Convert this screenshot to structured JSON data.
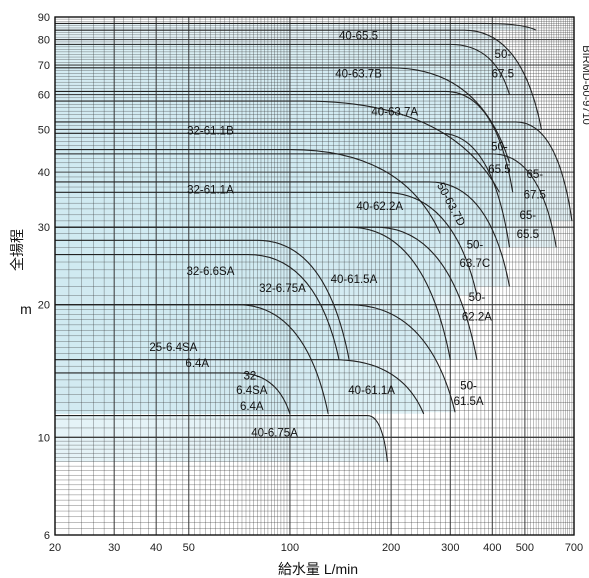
{
  "chart_data": {
    "type": "area",
    "xlabel": "給水量 L/min",
    "ylabel": "全揚程",
    "yunit": "m",
    "xscale": "log",
    "yscale": "log",
    "xlim": [
      20,
      700
    ],
    "ylim": [
      6,
      90
    ],
    "grid": true,
    "xticks": [
      20,
      30,
      40,
      50,
      100,
      200,
      300,
      400,
      500,
      700
    ],
    "yticks": [
      6,
      10,
      20,
      30,
      40,
      50,
      60,
      70,
      80,
      90
    ],
    "code": "BIRMD-60-9710",
    "colors": {
      "fill": "#cfe9f1",
      "line": "#222222",
      "grid": "#333333",
      "band": "#e9f4f7"
    },
    "regions": [
      {
        "label": "40-65.5",
        "hmax": 87,
        "hmin": 84,
        "qmax": 540,
        "knee": 380,
        "qend": 540
      },
      {
        "label": "50-67.5",
        "hmax": 84,
        "hmin": 50,
        "qmax": 560,
        "knee": 330,
        "qend": 560
      },
      {
        "label": "40-63.7B",
        "hmax": 78,
        "hmin": 60,
        "qmax": 450,
        "knee": 300,
        "qend": 450
      },
      {
        "label": "40-63.7A",
        "hmax": 69,
        "hmin": 42,
        "qmax": 450,
        "knee": 200,
        "qend": 450
      },
      {
        "label": "65-67.5",
        "hmax": 52,
        "hmin": 31,
        "qmax": 690,
        "knee": 470,
        "qend": 690
      },
      {
        "label": "50-65.5",
        "hmax": 61,
        "hmin": 36,
        "qmax": 460,
        "knee": 290,
        "qend": 460
      },
      {
        "label": "65-65.5",
        "hmax": 44,
        "hmin": 27,
        "qmax": 620,
        "knee": 400,
        "qend": 620
      },
      {
        "label": "32-61.1B",
        "hmax": 58,
        "hmin": 36,
        "qmax": 420,
        "knee": 110,
        "qend": 420
      },
      {
        "label": "50-63.7D",
        "hmax": 49,
        "hmin": 27,
        "qmax": 450,
        "knee": 280,
        "qend": 450
      },
      {
        "label": "50-63.7C",
        "hmax": 38,
        "hmin": 22,
        "qmax": 450,
        "knee": 260,
        "qend": 450
      },
      {
        "label": "32-61.1A",
        "hmax": 45,
        "hmin": 29,
        "qmax": 280,
        "knee": 100,
        "qend": 280
      },
      {
        "label": "40-62.2A",
        "hmax": 36,
        "hmin": 21,
        "qmax": 360,
        "knee": 190,
        "qend": 360
      },
      {
        "label": "50-62.2A",
        "hmax": 30,
        "hmin": 15,
        "qmax": 360,
        "knee": 180,
        "qend": 360
      },
      {
        "label": "40-61.5A",
        "hmax": 30,
        "hmin": 15,
        "qmax": 300,
        "knee": 150,
        "qend": 300
      },
      {
        "label": "32-6.6SA",
        "hmax": 28,
        "hmin": 15,
        "qmax": 150,
        "knee": 80,
        "qend": 150
      },
      {
        "label": "32-6.75A",
        "hmax": 26,
        "hmin": 15,
        "qmax": 140,
        "knee": 75,
        "qend": 140
      },
      {
        "label": "50-61.5A",
        "hmax": 20,
        "hmin": 11.4,
        "qmax": 310,
        "knee": 150,
        "qend": 310
      },
      {
        "label": "25-6.4SA 6.4A",
        "hmax": 20,
        "hmin": 11.3,
        "qmax": 130,
        "knee": 70,
        "qend": 130
      },
      {
        "label": "40-61.1A",
        "hmax": 15,
        "hmin": 11.3,
        "qmax": 250,
        "knee": 135,
        "qend": 250
      },
      {
        "label": "32-6.4SA 6.4A",
        "hmax": 14,
        "hmin": 11.3,
        "qmax": 100,
        "knee": 70,
        "qend": 100
      },
      {
        "label": "40-6.75A",
        "hmax": 11.2,
        "hmin": 8.8,
        "qmax": 195,
        "knee": 170,
        "qend": 195
      }
    ],
    "region_labels": [
      {
        "text": "40-65.5",
        "q": 160,
        "h": 80.5
      },
      {
        "text": "50-",
        "q": 430,
        "h": 73
      },
      {
        "text": "67.5",
        "q": 430,
        "h": 66
      },
      {
        "text": "40-63.7B",
        "q": 160,
        "h": 66
      },
      {
        "text": "40-63.7A",
        "q": 205,
        "h": 54
      },
      {
        "text": "32-61.1B",
        "q": 58,
        "h": 49
      },
      {
        "text": "50-",
        "q": 420,
        "h": 45
      },
      {
        "text": "65.5",
        "q": 420,
        "h": 40
      },
      {
        "text": "65-",
        "q": 535,
        "h": 39
      },
      {
        "text": "67.5",
        "q": 535,
        "h": 35
      },
      {
        "text": "32-61.1A",
        "q": 58,
        "h": 36
      },
      {
        "text": "40-62.2A",
        "q": 185,
        "h": 33
      },
      {
        "text": "65-",
        "q": 510,
        "h": 31.5
      },
      {
        "text": "65.5",
        "q": 510,
        "h": 28.5
      },
      {
        "text": "50-",
        "q": 355,
        "h": 27
      },
      {
        "text": "63.7C",
        "q": 355,
        "h": 24.5
      },
      {
        "text": "32-6.6SA",
        "q": 58,
        "h": 23.5
      },
      {
        "text": "40-61.5A",
        "q": 155,
        "h": 22.5
      },
      {
        "text": "32-6.75A",
        "q": 95,
        "h": 21.5
      },
      {
        "text": "50-",
        "q": 360,
        "h": 20.5
      },
      {
        "text": "62.2A",
        "q": 360,
        "h": 18.5
      },
      {
        "text": "25-6.4SA",
        "q": 45,
        "h": 15.8
      },
      {
        "text": "6.4A",
        "q": 53,
        "h": 14.5
      },
      {
        "text": "32-",
        "q": 77,
        "h": 13.6
      },
      {
        "text": "6.4SA",
        "q": 77,
        "h": 12.6
      },
      {
        "text": "6.4A",
        "q": 77,
        "h": 11.6
      },
      {
        "text": "40-61.1A",
        "q": 175,
        "h": 12.6
      },
      {
        "text": "50-",
        "q": 340,
        "h": 12.9
      },
      {
        "text": "61.5A",
        "q": 340,
        "h": 11.9
      },
      {
        "text": "40-6.75A",
        "q": 90,
        "h": 10.1
      }
    ],
    "rotated_label": {
      "text": "50-63.7D",
      "q": 295,
      "h": 33.5
    }
  }
}
